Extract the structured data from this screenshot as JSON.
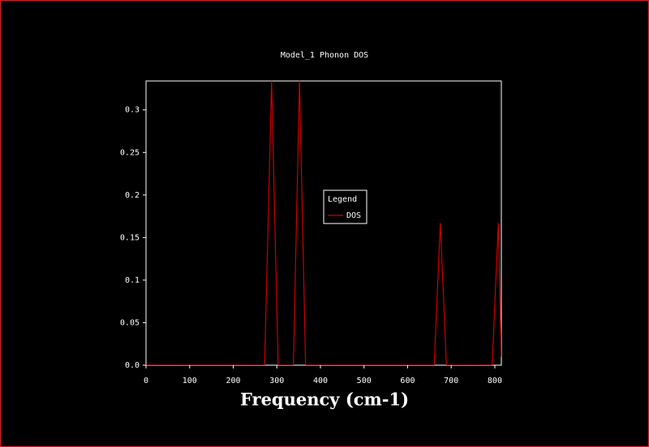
{
  "chart_data": {
    "type": "line",
    "title": "Model_1 Phonon DOS",
    "x_label": "Frequency (cm-1)",
    "legend_title": "Legend",
    "x": [
      0,
      272,
      288,
      303,
      338,
      352,
      366,
      661,
      675,
      689,
      794,
      808,
      815
    ],
    "series": [
      {
        "name": "DOS",
        "color": "#cc0000",
        "values": [
          0,
          0,
          0.334,
          0,
          0,
          0.334,
          0,
          0,
          0.167,
          0,
          0,
          0.167,
          0.01
        ]
      }
    ],
    "xlim": [
      0,
      815
    ],
    "ylim": [
      0,
      0.334
    ],
    "xticks": [
      0,
      100,
      200,
      300,
      400,
      500,
      600,
      700,
      800
    ],
    "yticks": [
      {
        "value": 0,
        "label": "0.0"
      },
      0.05,
      0.1,
      0.15,
      0.2,
      0.25,
      0.3
    ],
    "legend": "center"
  }
}
